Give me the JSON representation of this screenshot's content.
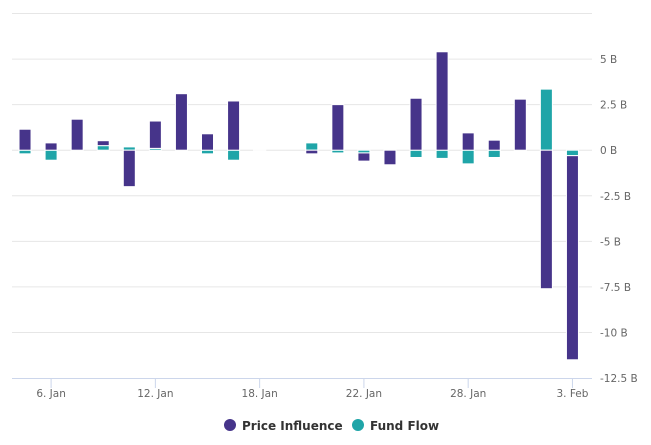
{
  "chart_data": {
    "type": "bar",
    "stacked": true,
    "categories": [
      "5. Jan",
      "6. Jan",
      "7. Jan",
      "8. Jan",
      "11. Jan",
      "12. Jan",
      "13. Jan",
      "14. Jan",
      "15. Jan",
      "18. Jan",
      "19. Jan",
      "20. Jan",
      "21. Jan",
      "22. Jan",
      "25. Jan",
      "26. Jan",
      "27. Jan",
      "28. Jan",
      "29. Jan",
      "1. Feb",
      "2. Feb",
      "3. Feb"
    ],
    "x_ticks": [
      "6. Jan",
      "12. Jan",
      "18. Jan",
      "22. Jan",
      "28. Jan",
      "3. Feb"
    ],
    "y_ticks": [
      5,
      2.5,
      0,
      -2.5,
      -5,
      -7.5,
      -10,
      -12.5
    ],
    "y_tick_labels": [
      "5 B",
      "2.5 B",
      "0 B",
      "-2.5 B",
      "-5 B",
      "-7.5 B",
      "-10 B",
      "-12.5 B"
    ],
    "ylim": [
      -12.5,
      7.5
    ],
    "y_unit": "B",
    "grid": true,
    "y_axis_side": "right",
    "legend_position": "bottom",
    "series": [
      {
        "name": "Fund Flow",
        "color": "#1fa5a8",
        "values": [
          -0.2,
          -0.55,
          0,
          0.25,
          0.18,
          0.1,
          0,
          -0.2,
          -0.55,
          0,
          null,
          0.4,
          -0.15,
          -0.15,
          0,
          -0.4,
          -0.45,
          -0.75,
          -0.4,
          0,
          3.35,
          -0.3
        ]
      },
      {
        "name": "Price Influence",
        "color": "#46348a",
        "values": [
          1.15,
          0.4,
          1.7,
          0.27,
          -2.0,
          1.5,
          3.1,
          0.9,
          2.7,
          0,
          null,
          -0.2,
          2.5,
          -0.45,
          -0.8,
          2.85,
          5.4,
          0.95,
          0.55,
          2.8,
          -7.6,
          -11.2
        ]
      }
    ],
    "legend": [
      "Price Influence",
      "Fund Flow"
    ]
  }
}
